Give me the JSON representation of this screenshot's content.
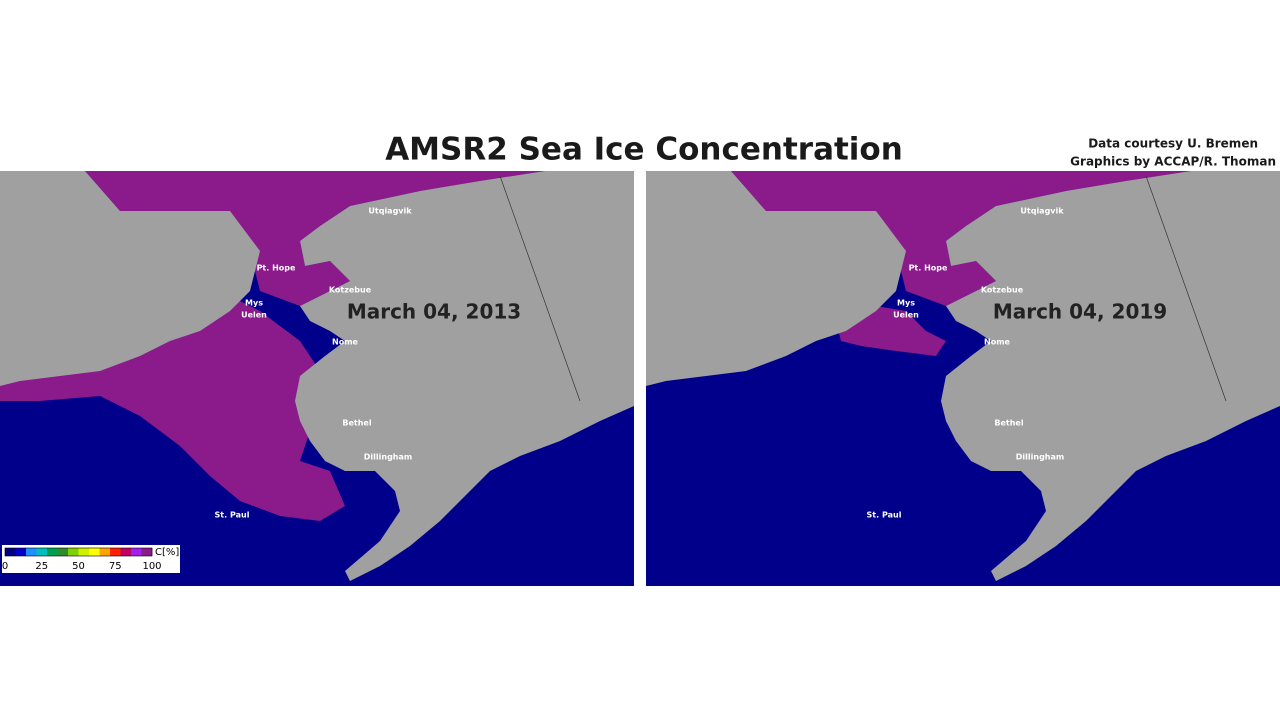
{
  "header": {
    "title": "AMSR2 Sea Ice Concentration",
    "credits": [
      "Data courtesy U. Bremen",
      "Graphics by ACCAP/R. Thoman"
    ]
  },
  "panels": [
    {
      "date": "March 04, 2013",
      "ice": "winter",
      "labels": [
        "Utqiagvik",
        "Pt. Hope",
        "Kotzebue",
        "Mys",
        "Uelen",
        "Nome",
        "Bethel",
        "Dillingham",
        "St. Paul"
      ]
    },
    {
      "date": "March 04, 2019",
      "ice": "low",
      "labels": [
        "Utqiagvik",
        "Pt. Hope",
        "Kotzebue",
        "Mys",
        "Uelen",
        "Nome",
        "Bethel",
        "Dillingham",
        "St. Paul"
      ]
    }
  ],
  "colorbar": {
    "label": "C[%]",
    "ticks": [
      0,
      25,
      50,
      75,
      100
    ],
    "colors": [
      "#000080",
      "#0000cd",
      "#1e90ff",
      "#00bfbf",
      "#00a050",
      "#2e8b2e",
      "#7fd000",
      "#d0f000",
      "#ffff00",
      "#ffa500",
      "#ff2000",
      "#c00060",
      "#a020f0",
      "#8b1a8b"
    ]
  }
}
